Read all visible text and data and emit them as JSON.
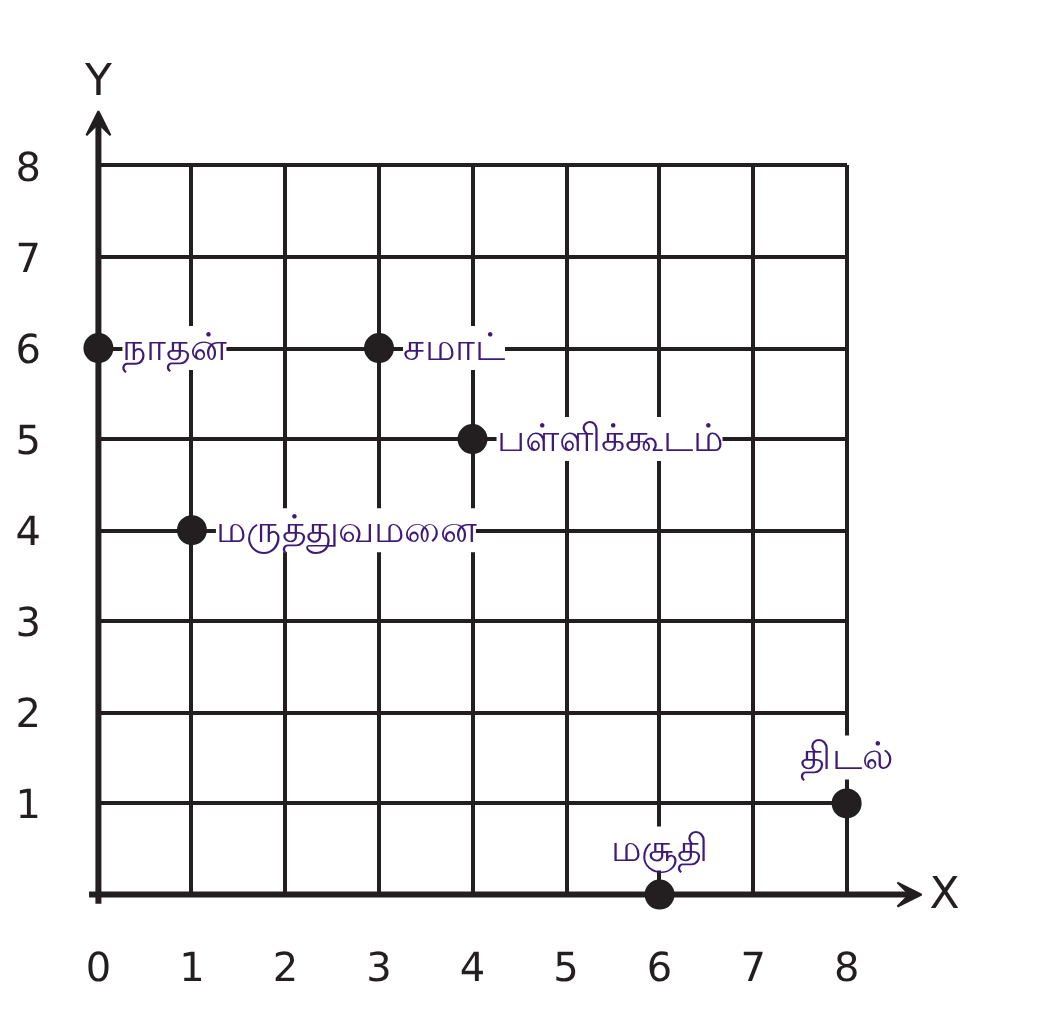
{
  "chart_data": {
    "type": "scatter",
    "xlabel": "X",
    "ylabel": "Y",
    "x": [
      0,
      3,
      4,
      1,
      8,
      6
    ],
    "series": [
      {
        "color": "#231f20",
        "values": [
          6,
          6,
          5,
          4,
          1,
          0
        ]
      }
    ],
    "xlim": [
      -0.1,
      8.8
    ],
    "ylim": [
      -0.1,
      8.6
    ],
    "xticks": [
      0,
      1,
      2,
      3,
      4,
      5,
      6,
      7,
      8
    ],
    "yticks": [
      1,
      2,
      3,
      4,
      5,
      6,
      7,
      8
    ],
    "grid": true,
    "marker": "circle",
    "annotations": [
      {
        "text": "நாதன்",
        "x": 0,
        "y": 6
      },
      {
        "text": "சமாட்",
        "x": 3,
        "y": 6
      },
      {
        "text": "பள்ளிக்கூடம்",
        "x": 4,
        "y": 5
      },
      {
        "text": "மருத்துவமனை",
        "x": 1,
        "y": 4
      },
      {
        "text": "திடல்",
        "x": 8,
        "y": 1
      },
      {
        "text": "மசூதி",
        "x": 6,
        "y": 0
      }
    ]
  }
}
